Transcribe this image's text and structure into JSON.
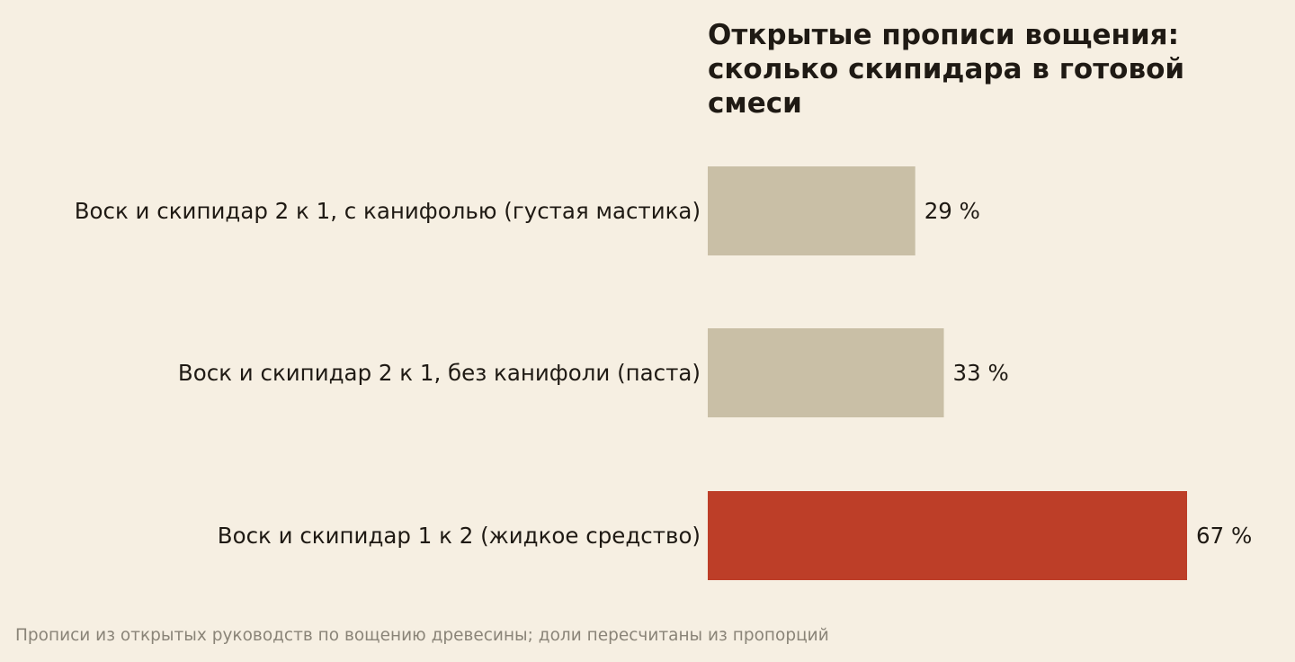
{
  "chart_data": {
    "type": "bar",
    "orientation": "horizontal",
    "title_lines": [
      "Открытые прописи вощения:",
      "сколько скипидара в готовой",
      "смеси"
    ],
    "categories": [
      "Воск и скипидар 2 к 1, с канифолью (густая мастика)",
      "Воск и скипидар 2 к 1, без канифоли (паста)",
      "Воск и скипидар 1 к 2 (жидкое средство)"
    ],
    "values": [
      29,
      33,
      67
    ],
    "value_labels": [
      "29 %",
      "33 %",
      "67 %"
    ],
    "unit": "%",
    "xlim": [
      0,
      67
    ],
    "grid": false,
    "legend": "none",
    "colors": {
      "default": "#c9bfa6",
      "highlight": "#bd3e28",
      "highlight_index": 2
    }
  },
  "footnote": "Прописи из открытых руководств по вощению древесины; доли пересчитаны из пропорций"
}
